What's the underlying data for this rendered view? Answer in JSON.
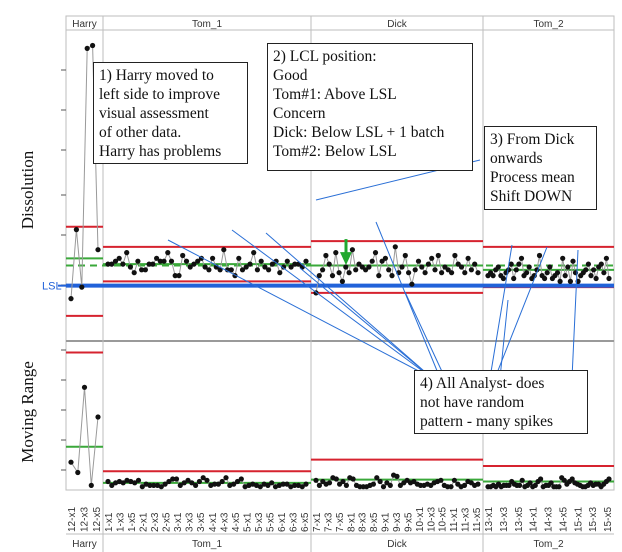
{
  "chart_data": {
    "type": "control_chart",
    "panels": [
      {
        "name": "Dissolution",
        "ylabel": "Dissolution",
        "lsl_label": "LSL"
      },
      {
        "name": "Moving Range",
        "ylabel": "Moving Range"
      }
    ],
    "phases": [
      {
        "name": "Harry",
        "x_labels": [
          "12-x1",
          "12-x3",
          "12-x5"
        ]
      },
      {
        "name": "Tom_1",
        "x_labels": [
          "1-x1",
          "1-x3",
          "1-x5",
          "2-x1",
          "2-x3",
          "2-x5",
          "3-x1",
          "3-x3",
          "3-x5",
          "4-x1",
          "4-x3",
          "4-x5",
          "5-x1",
          "5-x3",
          "5-x5",
          "6-x1",
          "6-x3",
          "6-x5"
        ]
      },
      {
        "name": "Dick",
        "x_labels": [
          "7-x1",
          "7-x3",
          "7-x5",
          "8-x1",
          "8-x3",
          "8-x5",
          "9-x1",
          "9-x3",
          "9-x5",
          "10-x1",
          "10-x3",
          "10-x5",
          "11-x1",
          "11-x3",
          "11-x5"
        ]
      },
      {
        "name": "Tom_2",
        "x_labels": [
          "13-x1",
          "13-x3",
          "13-x5",
          "14-x1",
          "14-x3",
          "14-x5",
          "15-x1",
          "15-x3",
          "15-x5"
        ]
      }
    ],
    "dissolution_values": {
      "Harry": [
        0.68,
        0.92,
        0.72,
        1.55,
        1.56,
        0.85
      ],
      "Tom_1": [
        0.8,
        0.8,
        0.81,
        0.82,
        0.8,
        0.84,
        0.79,
        0.77,
        0.81,
        0.78,
        0.78,
        0.8,
        0.8,
        0.82,
        0.81,
        0.81,
        0.84,
        0.81,
        0.76,
        0.76,
        0.83,
        0.81,
        0.79,
        0.8,
        0.81,
        0.82,
        0.79,
        0.78,
        0.82,
        0.79,
        0.78,
        0.85,
        0.78,
        0.78,
        0.76,
        0.82,
        0.78,
        0.79,
        0.8,
        0.84,
        0.78,
        0.81,
        0.79,
        0.78,
        0.8,
        0.81,
        0.77,
        0.79,
        0.81,
        0.79,
        0.8,
        0.8,
        0.79,
        0.81
      ],
      "Dick": [
        0.7,
        0.76,
        0.78,
        0.83,
        0.8,
        0.76,
        0.84,
        0.77,
        0.74,
        0.79,
        0.77,
        0.85,
        0.78,
        0.8,
        0.79,
        0.78,
        0.79,
        0.81,
        0.84,
        0.76,
        0.81,
        0.82,
        0.78,
        0.76,
        0.86,
        0.77,
        0.79,
        0.83,
        0.77,
        0.73,
        0.78,
        0.81,
        0.79,
        0.77,
        0.8,
        0.82,
        0.78,
        0.83,
        0.77,
        0.79,
        0.78,
        0.77,
        0.83,
        0.8,
        0.79,
        0.77,
        0.82,
        0.78,
        0.8,
        0.77
      ],
      "Tom_2": [
        0.76,
        0.77,
        0.76,
        0.78,
        0.79,
        0.76,
        0.75,
        0.77,
        0.78,
        0.8,
        0.75,
        0.78,
        0.8,
        0.82,
        0.76,
        0.77,
        0.79,
        0.75,
        0.76,
        0.78,
        0.83,
        0.76,
        0.75,
        0.77,
        0.79,
        0.75,
        0.76,
        0.77,
        0.74,
        0.82,
        0.76,
        0.79,
        0.74,
        0.81,
        0.77,
        0.74,
        0.76,
        0.77,
        0.78,
        0.8,
        0.76,
        0.78,
        0.75,
        0.79,
        0.8,
        0.77,
        0.82,
        0.75
      ]
    },
    "mr_values": {
      "Harry": [
        0.2,
        0.12,
        0.78,
        0.02,
        0.55
      ],
      "Tom_1": [
        0.05,
        0.02,
        0.04,
        0.05,
        0.04,
        0.06,
        0.05,
        0.04,
        0.06,
        0.01,
        0.03,
        0.02,
        0.02,
        0.02,
        0.01,
        0.03,
        0.05,
        0.07,
        0.07,
        0.02,
        0.04,
        0.06,
        0.04,
        0.02,
        0.05,
        0.08,
        0.06,
        0.02,
        0.03,
        0.03,
        0.05,
        0.08,
        0.02,
        0.03,
        0.05,
        0.07,
        0.01,
        0.02,
        0.03,
        0.02,
        0.01,
        0.03,
        0.02,
        0.04,
        0.01,
        0.02,
        0.03,
        0.03,
        0.01,
        0.02,
        0.02,
        0.01,
        0.03
      ],
      "Dick": [
        0.06,
        0.02,
        0.05,
        0.03,
        0.04,
        0.08,
        0.07,
        0.03,
        0.05,
        0.02,
        0.08,
        0.07,
        0.02,
        0.01,
        0.01,
        0.01,
        0.02,
        0.03,
        0.08,
        0.05,
        0.01,
        0.04,
        0.02,
        0.1,
        0.09,
        0.02,
        0.04,
        0.06,
        0.04,
        0.05,
        0.03,
        0.02,
        0.02,
        0.03,
        0.02,
        0.04,
        0.05,
        0.06,
        0.02,
        0.01,
        0.01,
        0.06,
        0.03,
        0.01,
        0.02,
        0.05,
        0.04,
        0.02,
        0.03
      ],
      "Tom_2": [
        0.01,
        0.01,
        0.02,
        0.01,
        0.03,
        0.01,
        0.02,
        0.02,
        0.02,
        0.05,
        0.03,
        0.02,
        0.02,
        0.06,
        0.01,
        0.02,
        0.04,
        0.01,
        0.02,
        0.05,
        0.07,
        0.01,
        0.02,
        0.02,
        0.04,
        0.01,
        0.01,
        0.01,
        0.08,
        0.06,
        0.03,
        0.05,
        0.07,
        0.04,
        0.03,
        0.02,
        0.01,
        0.01,
        0.02,
        0.04,
        0.02,
        0.03,
        0.03,
        0.01,
        0.03,
        0.05,
        0.07
      ]
    },
    "limits_dissolution": {
      "Harry": {
        "ucl": 0.93,
        "center": 0.82,
        "lcl": 0.62
      },
      "Tom_1": {
        "ucl": 0.86,
        "center": 0.8,
        "lcl": 0.74
      },
      "Dick": {
        "ucl": 0.88,
        "center": 0.795,
        "lcl": 0.7
      },
      "Tom_2": {
        "ucl": 0.86,
        "center": 0.78,
        "lcl": 0.72
      }
    },
    "limits_mr": {
      "Harry": {
        "ucl": 1.05,
        "center": 0.32
      },
      "Tom_1": {
        "ucl": 0.13,
        "center": 0.04
      },
      "Dick": {
        "ucl": 0.22,
        "center": 0.065
      },
      "Tom_2": {
        "ucl": 0.17,
        "center": 0.05
      }
    },
    "grand_mean": 0.795,
    "lsl": 0.725,
    "colors": {
      "point": "#111111",
      "line": "#9a9a9a",
      "ucl": "#d6232f",
      "center": "#3aa83a",
      "lsl": "#2162d9",
      "annotation_arrow": "#2a6fd6",
      "shift_arrow": "#22a82f"
    },
    "annotations": [
      {
        "id": "note1",
        "text": "1) Harry moved to\nleft side to improve\nvisual assessment\nof other data.\nHarry has problems"
      },
      {
        "id": "note2",
        "text": "2) LCL position:\nGood\nTom#1: Above LSL\nConcern\nDick: Below LSL + 1 batch\nTom#2: Below LSL"
      },
      {
        "id": "note3",
        "text": "3) From Dick\nonwards\nProcess mean\nShift DOWN"
      },
      {
        "id": "note4",
        "text": "4) All Analyst- does\nnot have random\n pattern - many spikes"
      }
    ]
  }
}
